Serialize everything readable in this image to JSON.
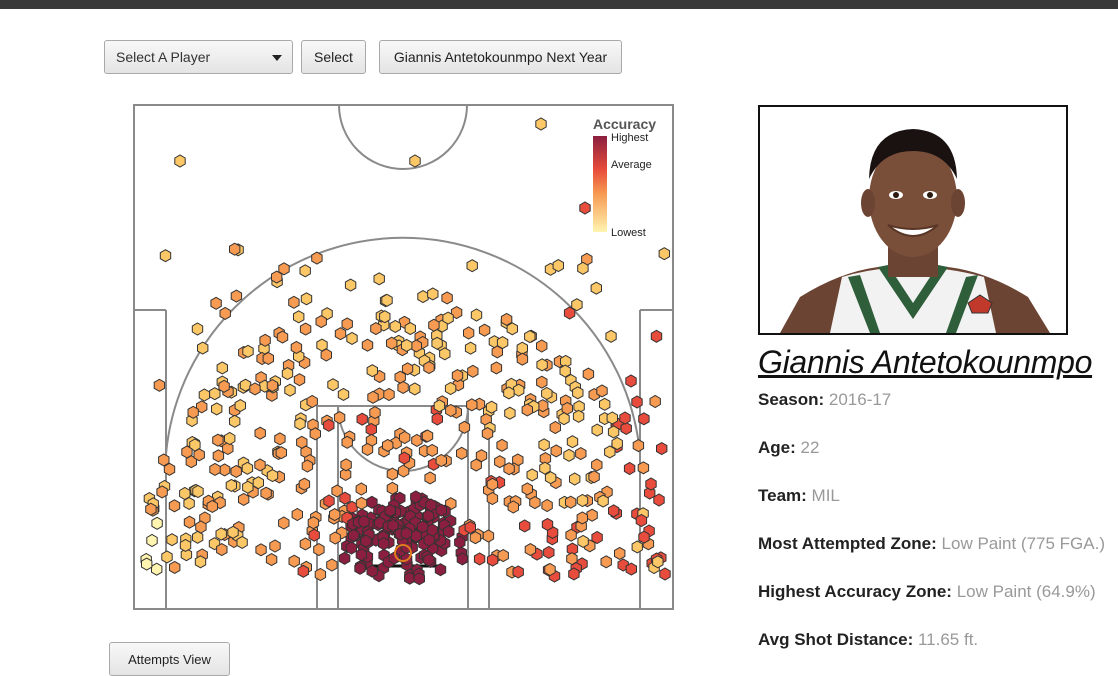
{
  "controls": {
    "player_select": "Select A Player",
    "select_button": "Select",
    "next_year_button": "Giannis Antetokounmpo Next Year",
    "attempts_view_button": "Attempts View"
  },
  "legend": {
    "title": "Accuracy",
    "high": "Highest",
    "mid": "Average",
    "low": "Lowest"
  },
  "colors": {
    "court_line": "#8a8a8a",
    "rim": "#e07b1e",
    "hex_stroke": "#333333",
    "lowest": "#fff4b0",
    "low": "#fcc766",
    "average": "#f79a52",
    "high": "#e74c3c",
    "highest": "#8b1f3f"
  },
  "player": {
    "name": "Giannis Antetokounmpo",
    "photo_icon": "player-headshot-icon",
    "stats": [
      {
        "label": "Season:",
        "value": "2016-17"
      },
      {
        "label": "Age:",
        "value": "22"
      },
      {
        "label": "Team:",
        "value": "MIL"
      },
      {
        "label": "Most Attempted Zone:",
        "value": "Low Paint (775 FGA.)"
      },
      {
        "label": "Highest Accuracy Zone:",
        "value": "Low Paint (64.9%)"
      },
      {
        "label": "Avg Shot Distance:",
        "value": "11.65 ft."
      }
    ]
  }
}
